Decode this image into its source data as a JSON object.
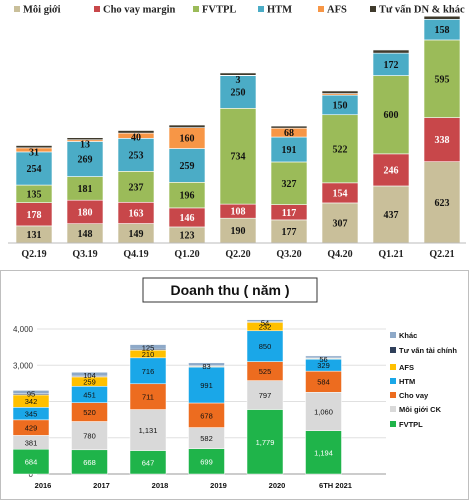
{
  "chart_data": [
    {
      "type": "bar",
      "stacked": true,
      "categories": [
        "Q2.19",
        "Q3.19",
        "Q4.19",
        "Q1.20",
        "Q2.20",
        "Q3.20",
        "Q4.20",
        "Q1.21",
        "Q2.21"
      ],
      "series": [
        {
          "name": "Môi giới",
          "color": "#c9bf9a",
          "values": [
            131,
            148,
            149,
            123,
            190,
            177,
            307,
            437,
            623
          ]
        },
        {
          "name": "Cho vay margin",
          "color": "#c8474a",
          "values": [
            178,
            180,
            163,
            146,
            108,
            117,
            154,
            246,
            338
          ]
        },
        {
          "name": "FVTPL",
          "color": "#9bbb59",
          "values": [
            135,
            181,
            237,
            196,
            734,
            327,
            522,
            600,
            595
          ]
        },
        {
          "name": "HTM",
          "color": "#4bacc6",
          "values": [
            254,
            269,
            253,
            259,
            250,
            191,
            150,
            172,
            158
          ]
        },
        {
          "name": "AFS",
          "color": "#f79646",
          "values": [
            31,
            13,
            40,
            160,
            3,
            68,
            12,
            0,
            0
          ]
        },
        {
          "name": "Tư vấn DN & khác",
          "color": "#3f3a2c",
          "values": [
            18,
            16,
            20,
            20,
            18,
            16,
            20,
            24,
            24
          ]
        }
      ],
      "labels": [
        [
          "131",
          "148",
          "149",
          "123",
          "190",
          "177",
          "307",
          "437",
          "623"
        ],
        [
          "178",
          "180",
          "163",
          "146",
          "108",
          "117",
          "154",
          "246",
          "338"
        ],
        [
          "135",
          "181",
          "237",
          "196",
          "734",
          "327",
          "522",
          "600",
          "595"
        ],
        [
          "254",
          "269",
          "253",
          "259",
          "250",
          "191",
          "150",
          "172",
          "158"
        ],
        [
          "31",
          "13",
          "40",
          "160",
          "3",
          "68",
          "",
          "",
          ""
        ],
        [
          "",
          "",
          "",
          "",
          "",
          "",
          "",
          "",
          ""
        ]
      ],
      "legend_position": "top",
      "grid": false
    },
    {
      "type": "bar",
      "stacked": true,
      "title": "Doanh thu ( năm )",
      "categories": [
        "2016",
        "2017",
        "2018",
        "2019",
        "2020",
        "6TH 2021"
      ],
      "ylim": [
        0,
        4000
      ],
      "yticks": [
        "0",
        "1,000",
        "2,000",
        "3,000",
        "4,000"
      ],
      "series": [
        {
          "name": "FVTPL",
          "color": "#1fb44a",
          "values": [
            684,
            668,
            647,
            699,
            1779,
            1194
          ]
        },
        {
          "name": "Môi giới CK",
          "color": "#d9d9d9",
          "values": [
            381,
            780,
            1131,
            582,
            797,
            1060
          ]
        },
        {
          "name": "Cho vay",
          "color": "#ed6c1f",
          "values": [
            429,
            520,
            711,
            678,
            525,
            584
          ]
        },
        {
          "name": "HTM",
          "color": "#1aa7e8",
          "values": [
            345,
            451,
            716,
            991,
            850,
            329
          ]
        },
        {
          "name": "AFS",
          "color": "#ffc000",
          "values": [
            342,
            259,
            210,
            17,
            232,
            17
          ]
        },
        {
          "name": "Tư vấn tài chính",
          "color": "#2f3f5a",
          "values": [
            30,
            25,
            30,
            17,
            20,
            17
          ]
        },
        {
          "name": "Khác",
          "color": "#8ea9c8",
          "values": [
            95,
            104,
            125,
            83,
            54,
            56
          ]
        }
      ],
      "labels": [
        [
          "684",
          "668",
          "647",
          "699",
          "1,779",
          "1,194"
        ],
        [
          "381",
          "780",
          "1,131",
          "582",
          "797",
          "1,060"
        ],
        [
          "429",
          "520",
          "711",
          "678",
          "525",
          "584"
        ],
        [
          "345",
          "451",
          "716",
          "991",
          "850",
          "329"
        ],
        [
          "342",
          "259",
          "210",
          "",
          "232",
          ""
        ],
        [
          "",
          "",
          "",
          "",
          "",
          ""
        ],
        [
          "95",
          "104",
          "125",
          "83",
          "54",
          "56"
        ]
      ],
      "legend_position": "right",
      "grid": true
    }
  ]
}
